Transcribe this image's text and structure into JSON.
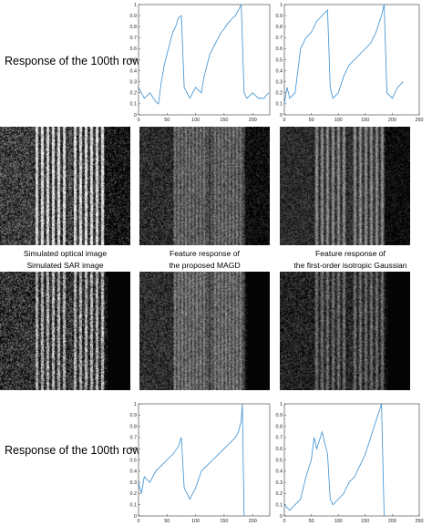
{
  "row_labels": {
    "top": "Response of the 100th row",
    "bottom": "Response of the 100th row"
  },
  "captions": {
    "optical": "Simulated optical image",
    "sar": "Simulated SAR image",
    "magd_line1": "Feature response of",
    "magd_line2": "the proposed MAGD",
    "gauss_line1": "Feature response of",
    "gauss_line2": "the first-order isotropic Gaussian"
  },
  "colors": {
    "line": "#3a8fd0",
    "axis": "#333333",
    "background": "#ffffff"
  },
  "chart_data": [
    {
      "type": "line",
      "panel": "top-left",
      "xlim": [
        0,
        230
      ],
      "ylim": [
        0,
        1
      ],
      "xticks": [
        0,
        50,
        100,
        150,
        200
      ],
      "yticks": [
        0,
        0.1,
        0.2,
        0.3,
        0.4,
        0.5,
        0.6,
        0.7,
        0.8,
        0.9,
        1
      ],
      "x": [
        0,
        10,
        20,
        30,
        35,
        40,
        45,
        50,
        55,
        60,
        65,
        70,
        75,
        80,
        85,
        90,
        100,
        110,
        115,
        120,
        125,
        130,
        135,
        140,
        145,
        150,
        155,
        160,
        165,
        170,
        175,
        180,
        185,
        190,
        200,
        210,
        220,
        228
      ],
      "y": [
        0.25,
        0.15,
        0.2,
        0.12,
        0.1,
        0.3,
        0.45,
        0.55,
        0.65,
        0.75,
        0.8,
        0.88,
        0.9,
        0.25,
        0.2,
        0.15,
        0.25,
        0.2,
        0.35,
        0.45,
        0.55,
        0.6,
        0.65,
        0.7,
        0.75,
        0.78,
        0.82,
        0.85,
        0.88,
        0.9,
        0.95,
        1.0,
        0.2,
        0.15,
        0.2,
        0.15,
        0.15,
        0.2
      ]
    },
    {
      "type": "line",
      "panel": "top-right",
      "xlim": [
        0,
        250
      ],
      "ylim": [
        0,
        1
      ],
      "xticks": [
        0,
        50,
        100,
        150,
        200,
        250
      ],
      "yticks": [
        0,
        0.1,
        0.2,
        0.3,
        0.4,
        0.5,
        0.6,
        0.7,
        0.8,
        0.9,
        1
      ],
      "x": [
        0,
        5,
        10,
        20,
        30,
        40,
        50,
        60,
        70,
        80,
        85,
        90,
        100,
        110,
        120,
        130,
        140,
        150,
        160,
        170,
        180,
        185,
        190,
        200,
        210,
        220
      ],
      "y": [
        0.1,
        0.25,
        0.15,
        0.2,
        0.6,
        0.7,
        0.75,
        0.85,
        0.9,
        0.95,
        0.25,
        0.15,
        0.2,
        0.35,
        0.45,
        0.5,
        0.55,
        0.6,
        0.65,
        0.75,
        0.9,
        1.0,
        0.2,
        0.15,
        0.25,
        0.3
      ]
    },
    {
      "type": "line",
      "panel": "bottom-left",
      "xlim": [
        0,
        230
      ],
      "ylim": [
        0,
        1
      ],
      "xticks": [
        0,
        50,
        100,
        150,
        200
      ],
      "yticks": [
        0,
        0.1,
        0.2,
        0.3,
        0.4,
        0.5,
        0.6,
        0.7,
        0.8,
        0.9,
        1
      ],
      "x": [
        0,
        5,
        10,
        20,
        30,
        40,
        50,
        60,
        70,
        75,
        80,
        85,
        90,
        100,
        110,
        120,
        130,
        140,
        150,
        160,
        170,
        175,
        180,
        182,
        185
      ],
      "y": [
        0.3,
        0.2,
        0.35,
        0.3,
        0.4,
        0.45,
        0.5,
        0.55,
        0.62,
        0.7,
        0.25,
        0.2,
        0.15,
        0.25,
        0.4,
        0.45,
        0.5,
        0.55,
        0.6,
        0.65,
        0.7,
        0.75,
        0.85,
        1.0,
        0.0
      ]
    },
    {
      "type": "line",
      "panel": "bottom-right",
      "xlim": [
        0,
        250
      ],
      "ylim": [
        0,
        1
      ],
      "xticks": [
        0,
        50,
        100,
        150,
        200,
        250
      ],
      "yticks": [
        0,
        0.1,
        0.2,
        0.3,
        0.4,
        0.5,
        0.6,
        0.7,
        0.8,
        0.9,
        1
      ],
      "x": [
        0,
        10,
        20,
        30,
        40,
        50,
        55,
        60,
        70,
        80,
        85,
        90,
        100,
        110,
        120,
        130,
        140,
        150,
        160,
        170,
        180,
        185
      ],
      "y": [
        0.1,
        0.05,
        0.1,
        0.15,
        0.35,
        0.5,
        0.7,
        0.6,
        0.75,
        0.55,
        0.15,
        0.1,
        0.15,
        0.2,
        0.3,
        0.35,
        0.45,
        0.55,
        0.7,
        0.85,
        1.0,
        0.0
      ]
    }
  ]
}
